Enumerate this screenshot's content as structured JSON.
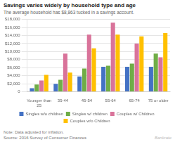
{
  "chart_data": {
    "type": "bar",
    "title": "Savings varies widely by household type and age",
    "subtitle": "The average household has $8,863 tucked in a savings account.",
    "annotations": [
      "Note: Data adjusted for inflation.",
      "Source: 2016 Survey of Consumer Finances",
      "Bankrate"
    ],
    "categories": [
      "Younger than\n25",
      "35-44",
      "45-54",
      "55-64",
      "65-74",
      "75 or older"
    ],
    "series": [
      {
        "name": "Singles w/o children",
        "color": "#4472c4",
        "values": [
          900,
          2000,
          3800,
          6200,
          6200,
          6200
        ]
      },
      {
        "name": "Singles w/ children",
        "color": "#70ad47",
        "values": [
          1800,
          3000,
          5800,
          6500,
          7000,
          9500
        ]
      },
      {
        "name": "Couples w/ Children",
        "color": "#d9739a",
        "values": [
          2800,
          9500,
          14200,
          17200,
          12000,
          8600
        ]
      },
      {
        "name": "Couples w/o Children",
        "color": "#ffc000",
        "values": [
          4200,
          4800,
          10800,
          14200,
          13800,
          14600
        ]
      }
    ],
    "ylim": [
      0,
      18000
    ],
    "yticks": [
      0,
      {
        "value": 2000,
        "label": "$2,000"
      },
      {
        "value": 4000,
        "label": "$4,000"
      },
      {
        "value": 6000,
        "label": "$6,000"
      },
      {
        "value": 8000,
        "label": "$8,000"
      },
      {
        "value": 10000,
        "label": "$10,000"
      },
      {
        "value": 12000,
        "label": "$12,000"
      },
      {
        "value": 14000,
        "label": "$14,000"
      },
      {
        "value": 16000,
        "label": "$16,000"
      },
      {
        "value": 18000,
        "label": "$18,000"
      }
    ],
    "grid": true,
    "legend": "bottom"
  }
}
